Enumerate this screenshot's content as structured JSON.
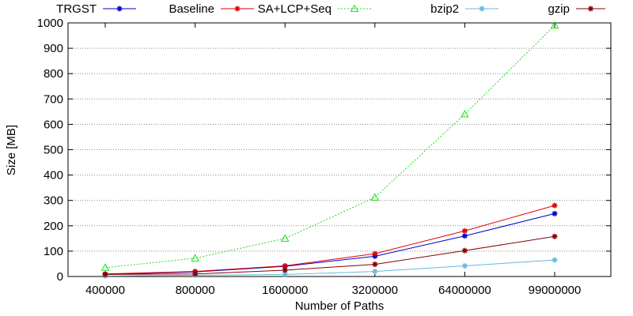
{
  "chart_data": {
    "type": "line",
    "xlabel": "Number of Paths",
    "ylabel": "Size [MB]",
    "categories": [
      "400000",
      "800000",
      "1600000",
      "3200000",
      "64000000",
      "99000000"
    ],
    "ylim": [
      0,
      1000
    ],
    "yticks": [
      0,
      100,
      200,
      300,
      400,
      500,
      600,
      700,
      800,
      900,
      1000
    ],
    "grid": true,
    "legend_position": "top",
    "series": [
      {
        "name": "TRGST",
        "color": "#0000cc",
        "marker": "star",
        "dash": "solid",
        "values": [
          8,
          18,
          40,
          80,
          160,
          248
        ]
      },
      {
        "name": "Baseline",
        "color": "#e00000",
        "marker": "star",
        "dash": "solid",
        "values": [
          10,
          20,
          42,
          90,
          180,
          280
        ]
      },
      {
        "name": "SA+LCP+Seq",
        "color": "#22dd22",
        "marker": "triangle",
        "dash": "dotted",
        "values": [
          35,
          72,
          150,
          312,
          640,
          990
        ]
      },
      {
        "name": "bzip2",
        "color": "#66bbdd",
        "marker": "star",
        "dash": "solid",
        "values": [
          2,
          5,
          8,
          20,
          42,
          65
        ]
      },
      {
        "name": "gzip",
        "color": "#880000",
        "marker": "star",
        "dash": "solid",
        "values": [
          8,
          10,
          25,
          48,
          102,
          158
        ]
      }
    ]
  }
}
